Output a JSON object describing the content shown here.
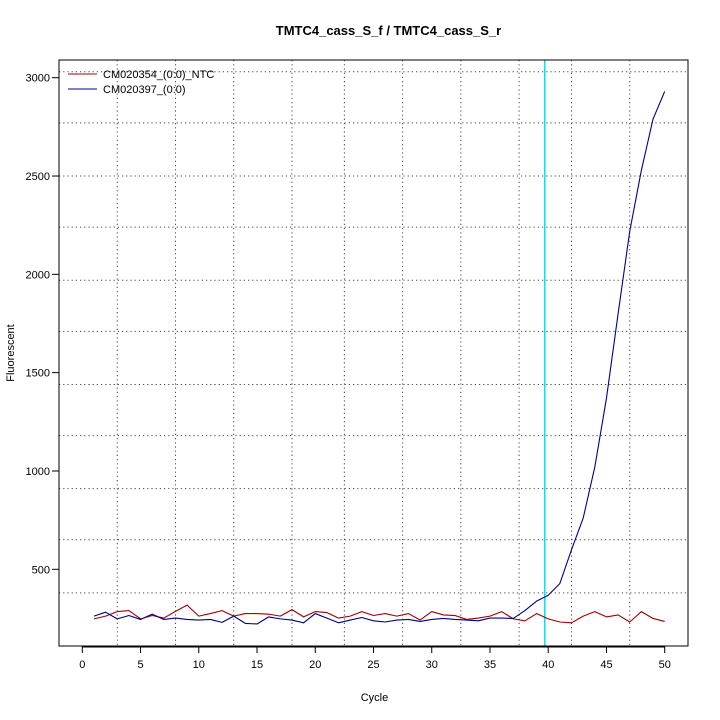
{
  "chart_data": {
    "type": "line",
    "title": "TMTC4_cass_S_f / TMTC4_cass_S_r",
    "xlabel": "Cycle",
    "ylabel": "Fluorescent",
    "xlim": [
      -2,
      52
    ],
    "ylim": [
      110,
      3090
    ],
    "xticks": [
      0,
      5,
      10,
      15,
      20,
      25,
      30,
      35,
      40,
      45,
      50
    ],
    "yticks": [
      500,
      1000,
      1500,
      2000,
      2500,
      3000
    ],
    "grid": true,
    "grid_style": "dotted",
    "grid_x": [
      3,
      8,
      13,
      18,
      22.5,
      27.5,
      32.5,
      37.5,
      42,
      47
    ],
    "grid_y": [
      380,
      650,
      910,
      1180,
      1440,
      1710,
      1970,
      2240,
      2500,
      2770,
      3030
    ],
    "threshold_cycle": 39.7,
    "threshold_color": "#00e5ee",
    "legend_position": "top-left",
    "x": [
      1,
      2,
      3,
      4,
      5,
      6,
      7,
      8,
      9,
      10,
      11,
      12,
      13,
      14,
      15,
      16,
      17,
      18,
      19,
      20,
      21,
      22,
      23,
      24,
      25,
      26,
      27,
      28,
      29,
      30,
      31,
      32,
      33,
      34,
      35,
      36,
      37,
      38,
      39,
      40,
      41,
      42,
      43,
      44,
      45,
      46,
      47,
      48,
      49,
      50
    ],
    "series": [
      {
        "name": "CM020354_(0:0)_NTC",
        "color": "#a00000",
        "values": [
          248,
          262,
          285,
          290,
          248,
          265,
          252,
          286,
          318,
          262,
          275,
          290,
          262,
          275,
          275,
          272,
          262,
          295,
          258,
          285,
          280,
          252,
          262,
          285,
          265,
          275,
          262,
          275,
          242,
          285,
          268,
          265,
          245,
          252,
          262,
          285,
          248,
          238,
          275,
          248,
          232,
          228,
          262,
          285,
          258,
          268,
          232,
          285,
          250,
          235
        ]
      },
      {
        "name": "CM020397_(0:0)",
        "color": "#00008b",
        "values": [
          262,
          282,
          248,
          265,
          245,
          272,
          245,
          252,
          245,
          242,
          245,
          230,
          262,
          225,
          222,
          258,
          248,
          242,
          228,
          275,
          252,
          228,
          242,
          255,
          238,
          232,
          242,
          245,
          235,
          245,
          250,
          245,
          242,
          238,
          252,
          252,
          250,
          290,
          338,
          368,
          428,
          600,
          760,
          1020,
          1370,
          1800,
          2220,
          2530,
          2790,
          2930
        ]
      }
    ]
  }
}
